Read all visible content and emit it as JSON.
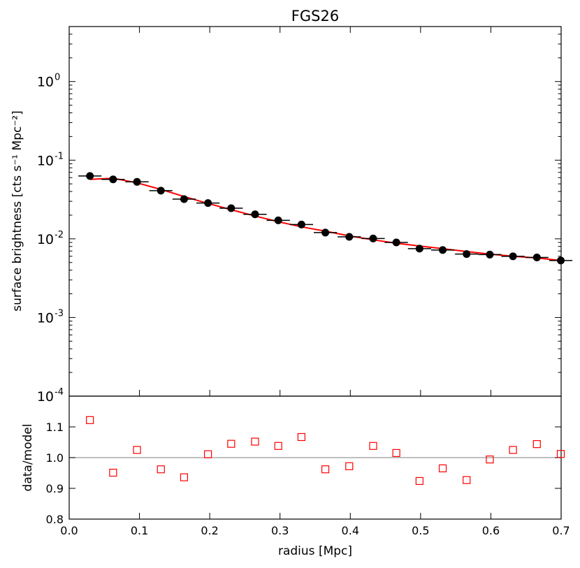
{
  "chart_data": [
    {
      "type": "scatter",
      "title": "FGS26",
      "ylabel": "surface brightness [cts s⁻¹ Mpc⁻²]",
      "xlabel": "",
      "yscale": "log",
      "xlim": [
        0.0,
        0.7
      ],
      "ylim": [
        0.0001,
        5
      ],
      "ytick_labels": [
        {
          "value": 0.0001,
          "mantissa": "10",
          "exp": "-4"
        },
        {
          "value": 0.001,
          "mantissa": "10",
          "exp": "-3"
        },
        {
          "value": 0.01,
          "mantissa": "10",
          "exp": "-2"
        },
        {
          "value": 0.1,
          "mantissa": "10",
          "exp": "-1"
        },
        {
          "value": 1,
          "mantissa": "10",
          "exp": "0"
        }
      ],
      "series": [
        {
          "kind": "data-with-xerr",
          "color": "#000000",
          "x": [
            0.0295,
            0.0625,
            0.0965,
            0.1305,
            0.1635,
            0.1975,
            0.2305,
            0.2645,
            0.2975,
            0.3305,
            0.3645,
            0.3985,
            0.4325,
            0.4655,
            0.4985,
            0.5315,
            0.5655,
            0.5985,
            0.6315,
            0.6655,
            0.6995
          ],
          "y": [
            0.063,
            0.057,
            0.053,
            0.041,
            0.032,
            0.0285,
            0.0245,
            0.0205,
            0.0172,
            0.0152,
            0.012,
            0.0106,
            0.0101,
            0.009,
            0.0075,
            0.0072,
            0.0064,
            0.0063,
            0.006,
            0.0058,
            0.0053
          ],
          "xerr": 0.0165
        },
        {
          "kind": "model-line",
          "color": "#ff0000",
          "x": [
            0.0295,
            0.0625,
            0.0965,
            0.1305,
            0.1635,
            0.1975,
            0.2305,
            0.2645,
            0.2975,
            0.3305,
            0.3645,
            0.3985,
            0.4325,
            0.4655,
            0.4985,
            0.5315,
            0.5655,
            0.5985,
            0.6315,
            0.6655,
            0.6995
          ],
          "y": [
            0.057,
            0.059,
            0.0515,
            0.0425,
            0.0345,
            0.0282,
            0.0235,
            0.0195,
            0.0165,
            0.0142,
            0.0125,
            0.0109,
            0.0097,
            0.0088,
            0.0081,
            0.0075,
            0.0069,
            0.0064,
            0.006,
            0.0057,
            0.0053
          ]
        }
      ]
    },
    {
      "type": "scatter",
      "xlabel": "radius [Mpc]",
      "ylabel": "data/model",
      "xlim": [
        0.0,
        0.7
      ],
      "ylim": [
        0.8,
        1.2
      ],
      "xticks": [
        0.0,
        0.1,
        0.2,
        0.3,
        0.4,
        0.5,
        0.6,
        0.7
      ],
      "xtick_labels": [
        "0.0",
        "0.1",
        "0.2",
        "0.3",
        "0.4",
        "0.5",
        "0.6",
        "0.7"
      ],
      "yticks": [
        0.8,
        0.9,
        1.0,
        1.1
      ],
      "ytick_labels": [
        "0.8",
        "0.9",
        "1.0",
        "1.1"
      ],
      "reference_line": 1.0,
      "series": [
        {
          "kind": "ratio-markers",
          "marker": "open-square",
          "color": "#ff0000",
          "x": [
            0.0295,
            0.0625,
            0.0965,
            0.1305,
            0.1635,
            0.1975,
            0.2305,
            0.2645,
            0.2975,
            0.3305,
            0.3645,
            0.3985,
            0.4325,
            0.4655,
            0.4985,
            0.5315,
            0.5655,
            0.5985,
            0.6315,
            0.6655,
            0.6995
          ],
          "y": [
            1.122,
            0.951,
            1.025,
            0.962,
            0.936,
            1.011,
            1.045,
            1.052,
            1.038,
            1.067,
            0.962,
            0.972,
            1.038,
            1.015,
            0.924,
            0.965,
            0.927,
            0.994,
            1.025,
            1.044,
            1.012
          ]
        }
      ]
    }
  ]
}
